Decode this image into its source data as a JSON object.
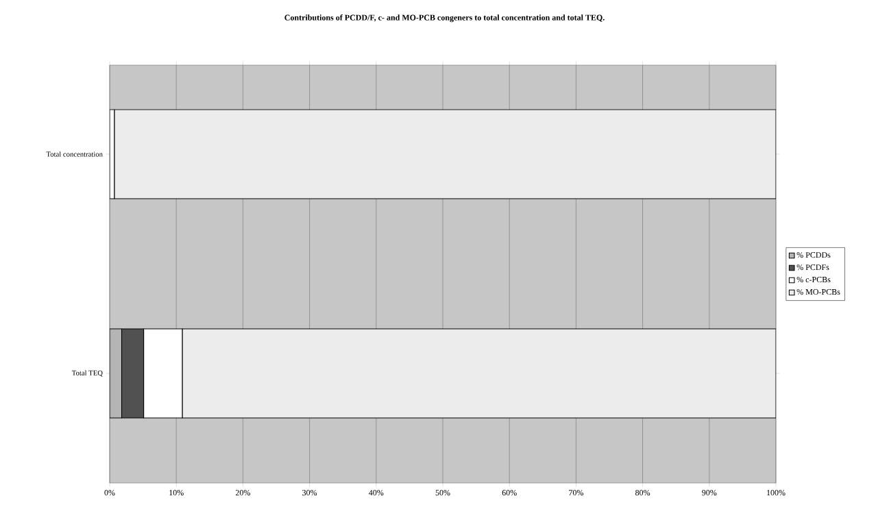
{
  "chart_data": {
    "type": "bar",
    "orientation": "horizontal",
    "stacked": true,
    "title": "Contributions of PCDD/F, c- and MO-PCB congeners to total concentration and total TEQ.",
    "categories": [
      "Total concentration",
      "Total TEQ"
    ],
    "series": [
      {
        "name": "% PCDDs",
        "color": "#b4b4b4",
        "values": [
          0,
          1.8
        ]
      },
      {
        "name": "% PCDFs",
        "color": "#505050",
        "values": [
          0,
          3.3
        ]
      },
      {
        "name": "% c-PCBs",
        "color": "#ffffff",
        "values": [
          0.7,
          5.8
        ]
      },
      {
        "name": "% MO-PCBs",
        "color": "#ececec",
        "values": [
          99.3,
          89.1
        ]
      }
    ],
    "xlim": [
      0,
      100
    ],
    "xticks": [
      {
        "value": 0,
        "label": "0%"
      },
      {
        "value": 10,
        "label": "10%"
      },
      {
        "value": 20,
        "label": "20%"
      },
      {
        "value": 30,
        "label": "30%"
      },
      {
        "value": 40,
        "label": "40%"
      },
      {
        "value": 50,
        "label": "50%"
      },
      {
        "value": 60,
        "label": "60%"
      },
      {
        "value": 70,
        "label": "70%"
      },
      {
        "value": 80,
        "label": "80%"
      },
      {
        "value": 90,
        "label": "90%"
      },
      {
        "value": 100,
        "label": "100%"
      }
    ],
    "grid": "x",
    "legend": "right"
  }
}
